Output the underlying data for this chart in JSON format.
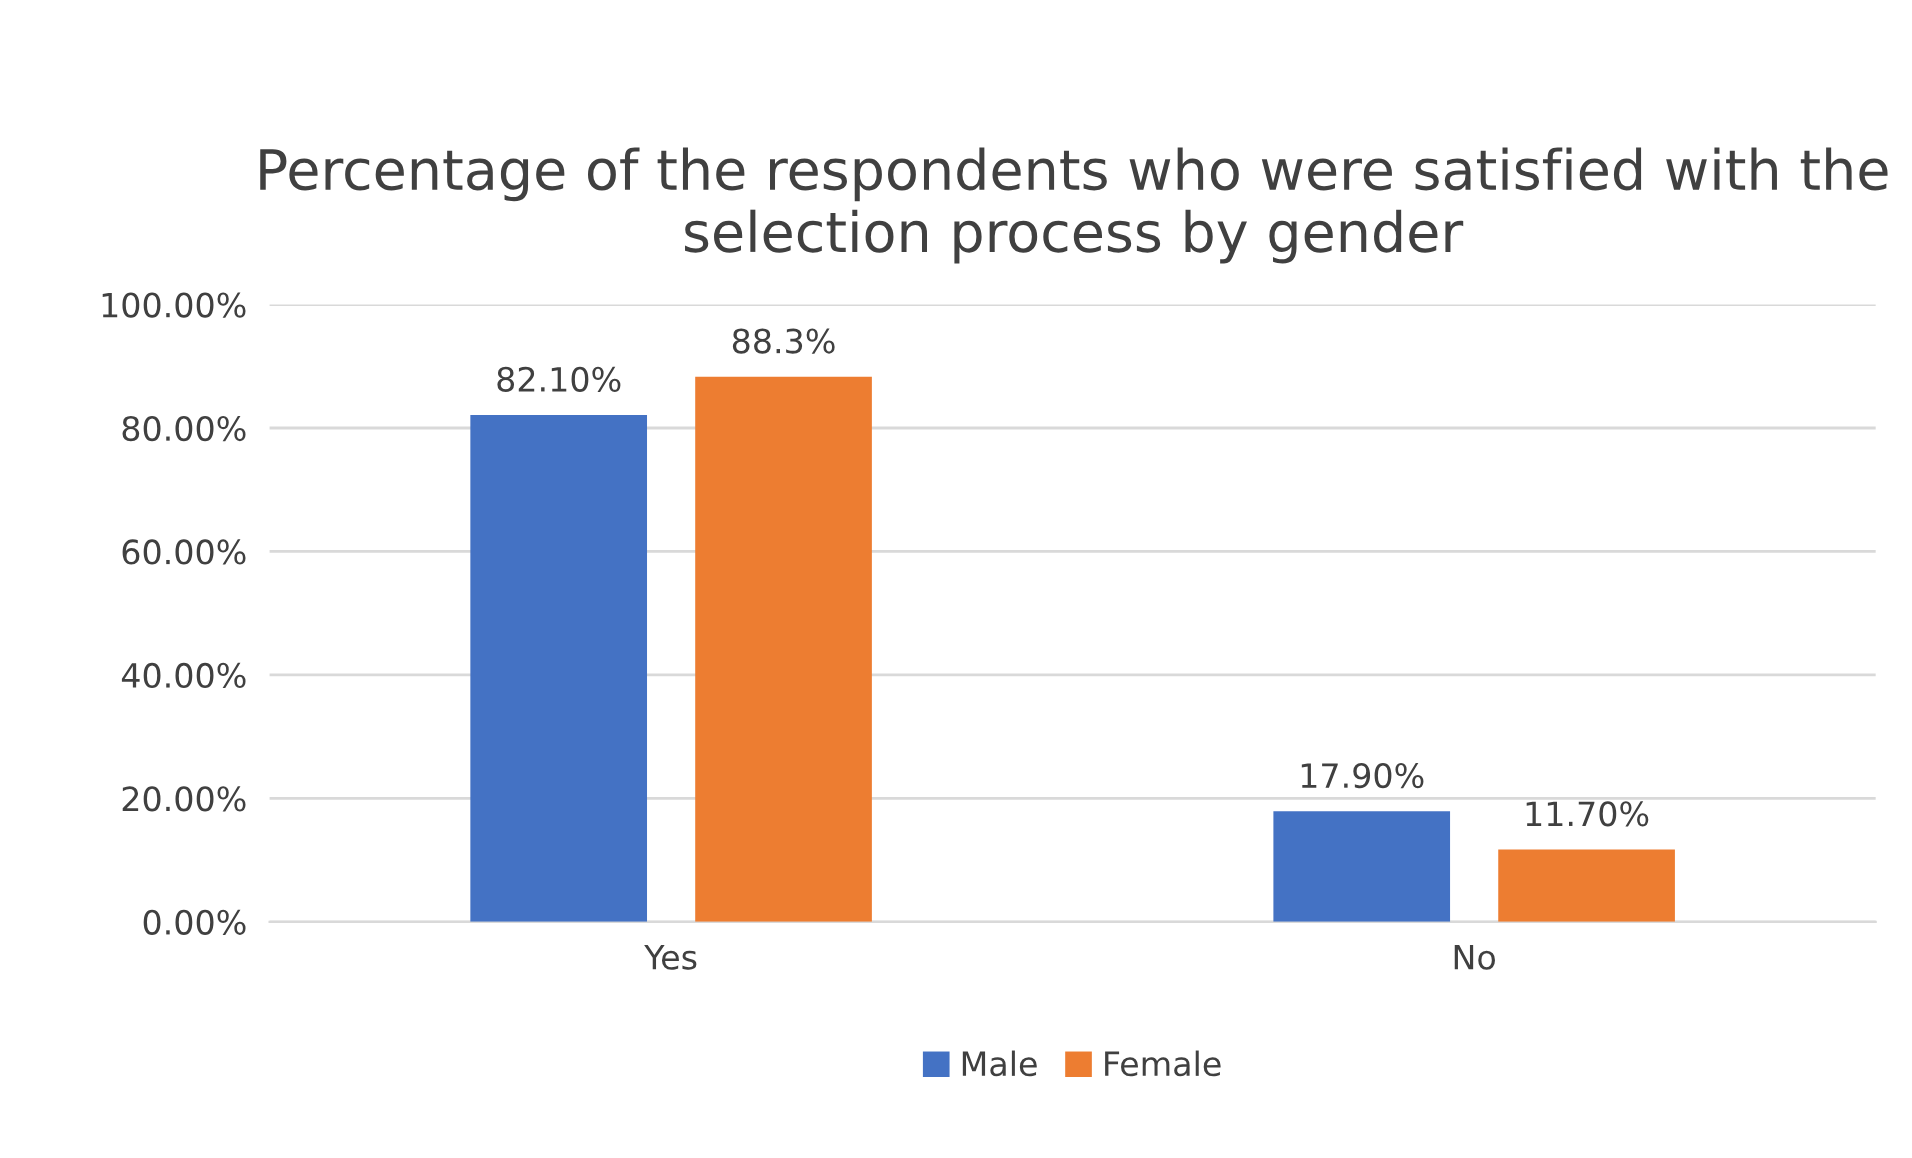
{
  "chart_data": {
    "type": "bar",
    "title": "Percentage of the respondents who were satisfied with the selection process by gender",
    "categories": [
      "Yes",
      "No"
    ],
    "series": [
      {
        "name": "Male",
        "color": "#4472c4",
        "values": [
          82.1,
          17.9
        ],
        "value_labels": [
          "82.10%",
          "17.90%"
        ]
      },
      {
        "name": "Female",
        "color": "#ed7d31",
        "values": [
          88.3,
          11.7
        ],
        "value_labels": [
          "88.3%",
          "11.70%"
        ]
      }
    ],
    "ylim": [
      0,
      100
    ],
    "yticks": [
      {
        "value": 0,
        "label": "0.00%"
      },
      {
        "value": 20,
        "label": "20.00%"
      },
      {
        "value": 40,
        "label": "40.00%"
      },
      {
        "value": 60,
        "label": "60.00%"
      },
      {
        "value": 80,
        "label": "80.00%"
      },
      {
        "value": 100,
        "label": "100.00%"
      }
    ],
    "grid": "y",
    "legend": "bottom"
  }
}
